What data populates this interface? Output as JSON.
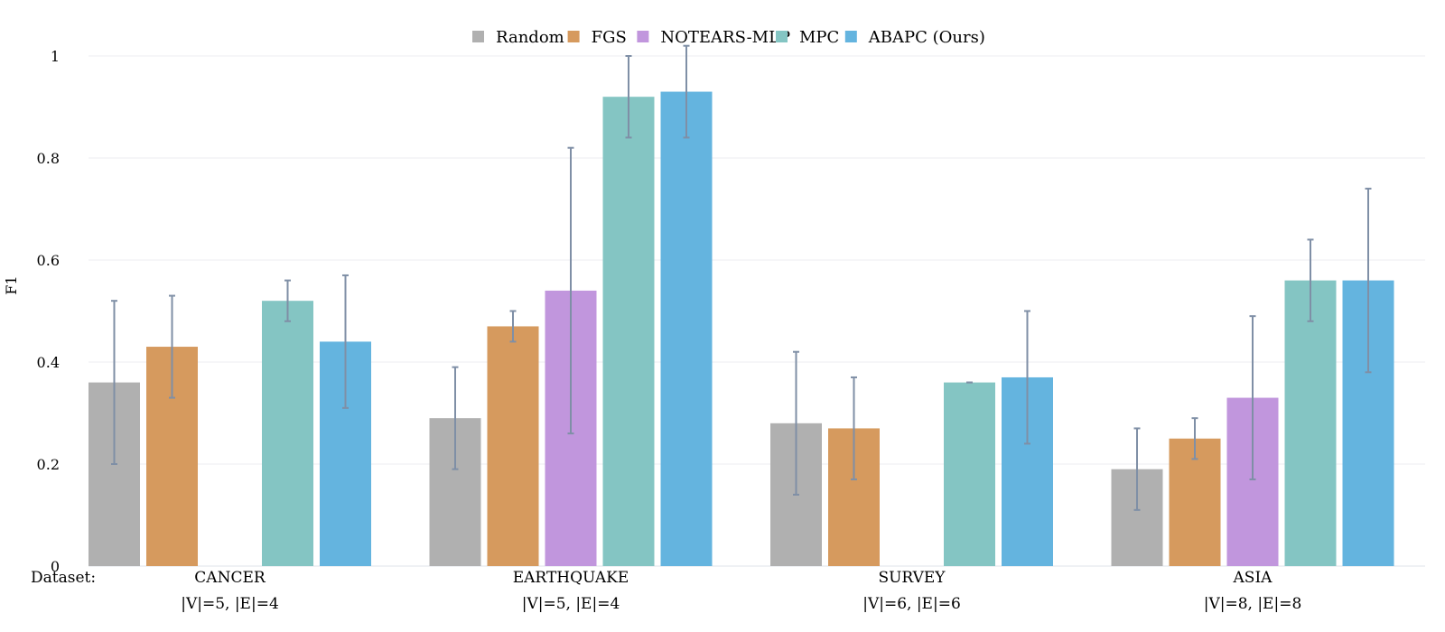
{
  "chart_data": {
    "type": "bar",
    "ylabel": "F1",
    "ylim": [
      0,
      1
    ],
    "yticks": [
      0,
      0.2,
      0.4,
      0.6,
      0.8,
      1
    ],
    "ytick_labels": [
      "0",
      "0.2",
      "0.4",
      "0.6",
      "0.8",
      "1"
    ],
    "x_prefix_label": "Dataset:",
    "categories": [
      {
        "name": "CANCER",
        "sub": "|V|=5, |E|=4"
      },
      {
        "name": "EARTHQUAKE",
        "sub": "|V|=5, |E|=4"
      },
      {
        "name": "SURVEY",
        "sub": "|V|=6, |E|=6"
      },
      {
        "name": "ASIA",
        "sub": "|V|=8, |E|=8"
      }
    ],
    "series": [
      {
        "name": "Random",
        "color": "#b0b0b0",
        "values": [
          0.36,
          0.29,
          0.28,
          0.19
        ],
        "err_low": [
          0.2,
          0.19,
          0.14,
          0.11
        ],
        "err_high": [
          0.52,
          0.39,
          0.42,
          0.27
        ]
      },
      {
        "name": "FGS",
        "color": "#d69a5e",
        "values": [
          0.43,
          0.47,
          0.27,
          0.25
        ],
        "err_low": [
          0.33,
          0.44,
          0.17,
          0.21
        ],
        "err_high": [
          0.53,
          0.5,
          0.37,
          0.29
        ]
      },
      {
        "name": "NOTEARS-MLP",
        "color": "#c196dd",
        "values": [
          null,
          0.54,
          null,
          0.33
        ],
        "err_low": [
          null,
          0.26,
          null,
          0.17
        ],
        "err_high": [
          null,
          0.82,
          null,
          0.49
        ]
      },
      {
        "name": "MPC",
        "color": "#84c5c3",
        "values": [
          0.52,
          0.92,
          0.36,
          0.56
        ],
        "err_low": [
          0.48,
          0.84,
          0.36,
          0.48
        ],
        "err_high": [
          0.56,
          1.0,
          0.36,
          0.64
        ]
      },
      {
        "name": "ABAPC (Ours)",
        "color": "#64b4df",
        "values": [
          0.44,
          0.93,
          0.37,
          0.56
        ],
        "err_low": [
          0.31,
          0.84,
          0.24,
          0.38
        ],
        "err_high": [
          0.57,
          1.02,
          0.5,
          0.74
        ]
      }
    ],
    "error_bar_color": "#7f8fa6",
    "grid": true,
    "legend_position": "top-center"
  }
}
